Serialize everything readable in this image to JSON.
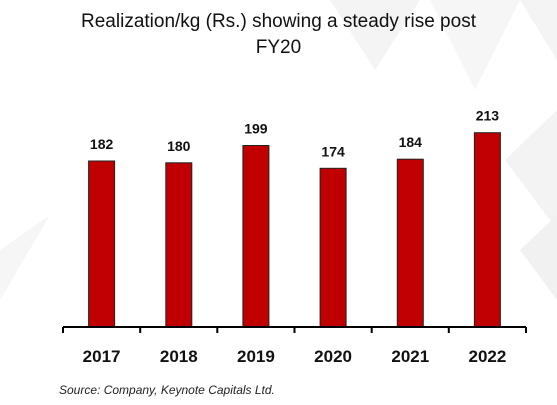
{
  "chart_data": {
    "type": "bar",
    "title_line1": "Realization/kg (Rs.) showing a steady rise post",
    "title_line2": "FY20",
    "categories": [
      "2017",
      "2018",
      "2019",
      "2020",
      "2021",
      "2022"
    ],
    "values": [
      182,
      180,
      199,
      174,
      184,
      213
    ],
    "data_labels": [
      "182",
      "180",
      "199",
      "174",
      "184",
      "213"
    ],
    "ylim": [
      0,
      230
    ],
    "grid": false,
    "legend": "none",
    "bar_color": "#C00000",
    "bar_outline_color": "#222222",
    "axis_color": "#000000"
  },
  "source": "Source: Company, Keynote Capitals Ltd."
}
